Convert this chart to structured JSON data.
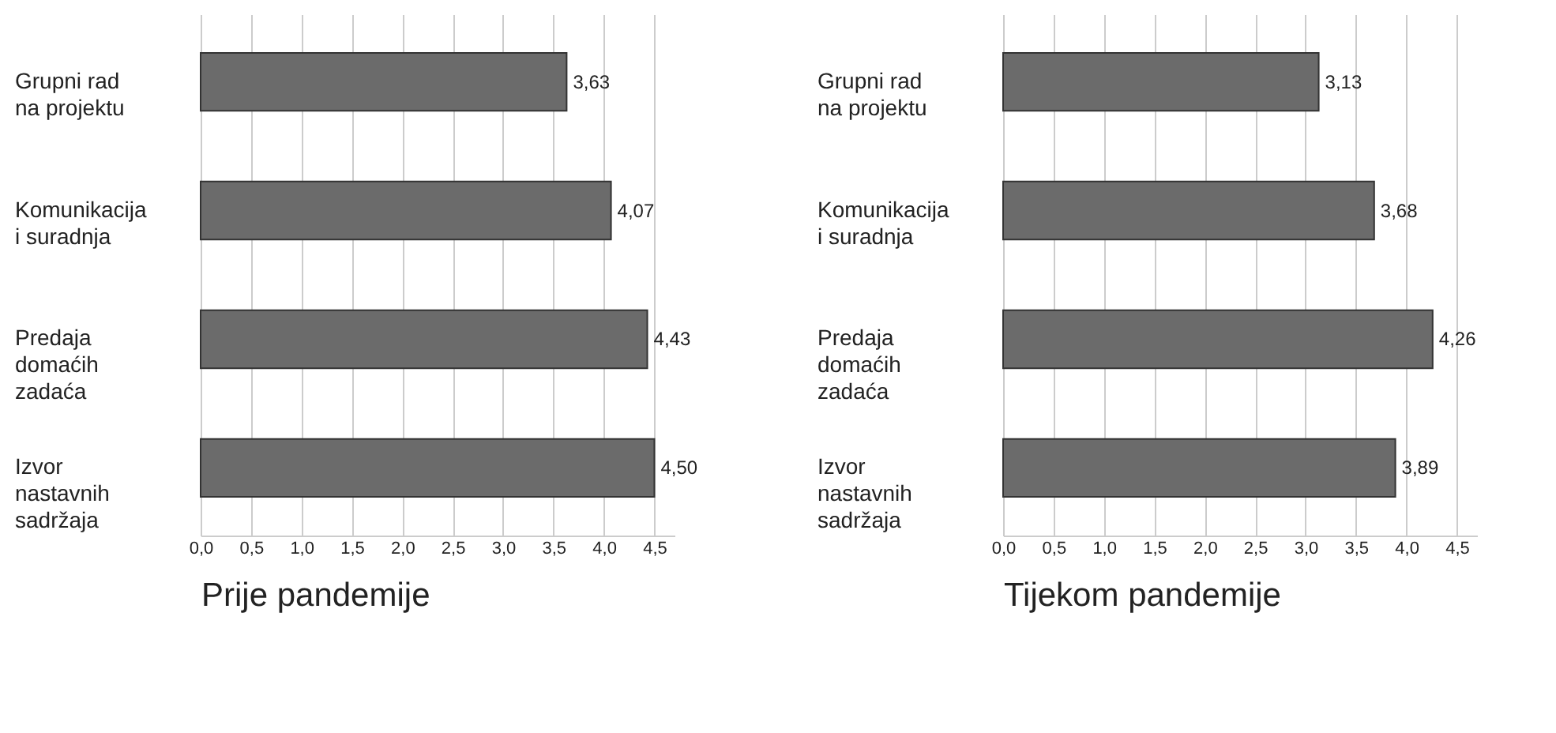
{
  "chart_data": [
    {
      "type": "bar",
      "orientation": "horizontal",
      "xlabel": "Prije pandemije",
      "categories": [
        "Grupni rad na projektu",
        "Komunikacija i suradnja",
        "Predaja domaćih zadaća",
        "Izvor nastavnih sadržaja"
      ],
      "series": [
        {
          "color": "#6b6b6b",
          "values": [
            3.63,
            4.07,
            4.43,
            4.5
          ],
          "value_labels": [
            "3,63",
            "4,07",
            "4,43",
            "4,50"
          ]
        }
      ],
      "xlim": [
        0,
        4.7
      ],
      "xticks": [
        {
          "value": 0,
          "label": "0,0"
        },
        {
          "value": 0.5,
          "label": "0,5"
        },
        {
          "value": 1,
          "label": "1,0"
        },
        {
          "value": 1.5,
          "label": "1,5"
        },
        {
          "value": 2,
          "label": "2,0"
        },
        {
          "value": 2.5,
          "label": "2,5"
        },
        {
          "value": 3,
          "label": "3,0"
        },
        {
          "value": 3.5,
          "label": "3,5"
        },
        {
          "value": 4,
          "label": "4,0"
        },
        {
          "value": 4.5,
          "label": "4,5"
        }
      ],
      "grid": "x"
    },
    {
      "type": "bar",
      "orientation": "horizontal",
      "xlabel": "Tijekom pandemije",
      "categories": [
        "Grupni rad na projektu",
        "Komunikacija i suradnja",
        "Predaja domaćih zadaća",
        "Izvor nastavnih sadržaja"
      ],
      "series": [
        {
          "color": "#6b6b6b",
          "values": [
            3.13,
            3.68,
            4.26,
            3.89
          ],
          "value_labels": [
            "3,13",
            "3,68",
            "4,26",
            "3,89"
          ]
        }
      ],
      "xlim": [
        0,
        4.7
      ],
      "xticks": [
        {
          "value": 0,
          "label": "0,0"
        },
        {
          "value": 0.5,
          "label": "0,5"
        },
        {
          "value": 1,
          "label": "1,0"
        },
        {
          "value": 1.5,
          "label": "1,5"
        },
        {
          "value": 2,
          "label": "2,0"
        },
        {
          "value": 2.5,
          "label": "2,5"
        },
        {
          "value": 3,
          "label": "3,0"
        },
        {
          "value": 3.5,
          "label": "3,5"
        },
        {
          "value": 4,
          "label": "4,0"
        },
        {
          "value": 4.5,
          "label": "4,5"
        }
      ],
      "grid": "x"
    }
  ]
}
